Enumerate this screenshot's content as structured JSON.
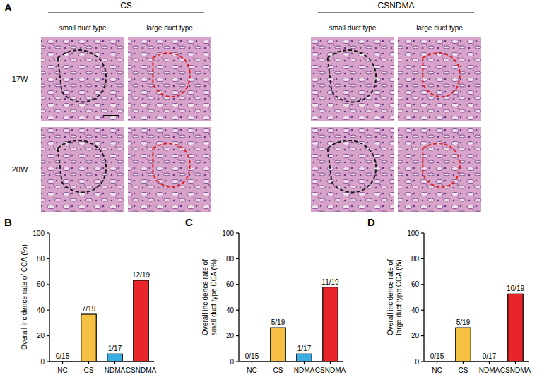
{
  "panel_labels": [
    "A",
    "B",
    "C",
    "D"
  ],
  "panel_a": {
    "groups": [
      {
        "title": "CS",
        "columns": [
          "small duct type",
          "large duct type"
        ]
      },
      {
        "title": "CSNDMA",
        "columns": [
          "small duct type",
          "large duct type"
        ]
      }
    ],
    "rows": [
      "17W",
      "20W"
    ]
  },
  "chart_data": [
    {
      "type": "bar",
      "ylabel": "Overall incidence rate of CCA (%)",
      "categories": [
        "NC",
        "CS",
        "NDMA",
        "CSNDMA"
      ],
      "values": [
        0,
        36.8,
        5.9,
        63.2
      ],
      "value_labels": [
        "0/15",
        "7/19",
        "1/17",
        "12/19"
      ],
      "colors": [
        "#ffffff",
        "#f6c143",
        "#3aaee0",
        "#e8262a"
      ],
      "ylim": [
        0,
        100
      ],
      "yticks": [
        0,
        20,
        40,
        60,
        80,
        100
      ],
      "data_labels": true,
      "grid": false
    },
    {
      "type": "bar",
      "ylabel": "Overall incidence rate of small duct type CCA (%)",
      "categories": [
        "NC",
        "CS",
        "NDMA",
        "CSNDMA"
      ],
      "values": [
        0,
        26.3,
        5.9,
        57.9
      ],
      "value_labels": [
        "0/15",
        "5/19",
        "1/17",
        "11/19"
      ],
      "colors": [
        "#ffffff",
        "#f6c143",
        "#3aaee0",
        "#e8262a"
      ],
      "ylim": [
        0,
        100
      ],
      "yticks": [
        0,
        20,
        40,
        60,
        80,
        100
      ],
      "data_labels": true,
      "grid": false
    },
    {
      "type": "bar",
      "ylabel": "Overall incidence rate of large duct type CCA (%)",
      "categories": [
        "NC",
        "CS",
        "NDMA",
        "CSNDMA"
      ],
      "values": [
        0,
        26.3,
        0,
        52.6
      ],
      "value_labels": [
        "0/15",
        "5/19",
        "0/17",
        "10/19"
      ],
      "colors": [
        "#ffffff",
        "#f6c143",
        "#3aaee0",
        "#e8262a"
      ],
      "ylim": [
        0,
        100
      ],
      "yticks": [
        0,
        20,
        40,
        60,
        80,
        100
      ],
      "data_labels": true,
      "grid": false
    }
  ]
}
